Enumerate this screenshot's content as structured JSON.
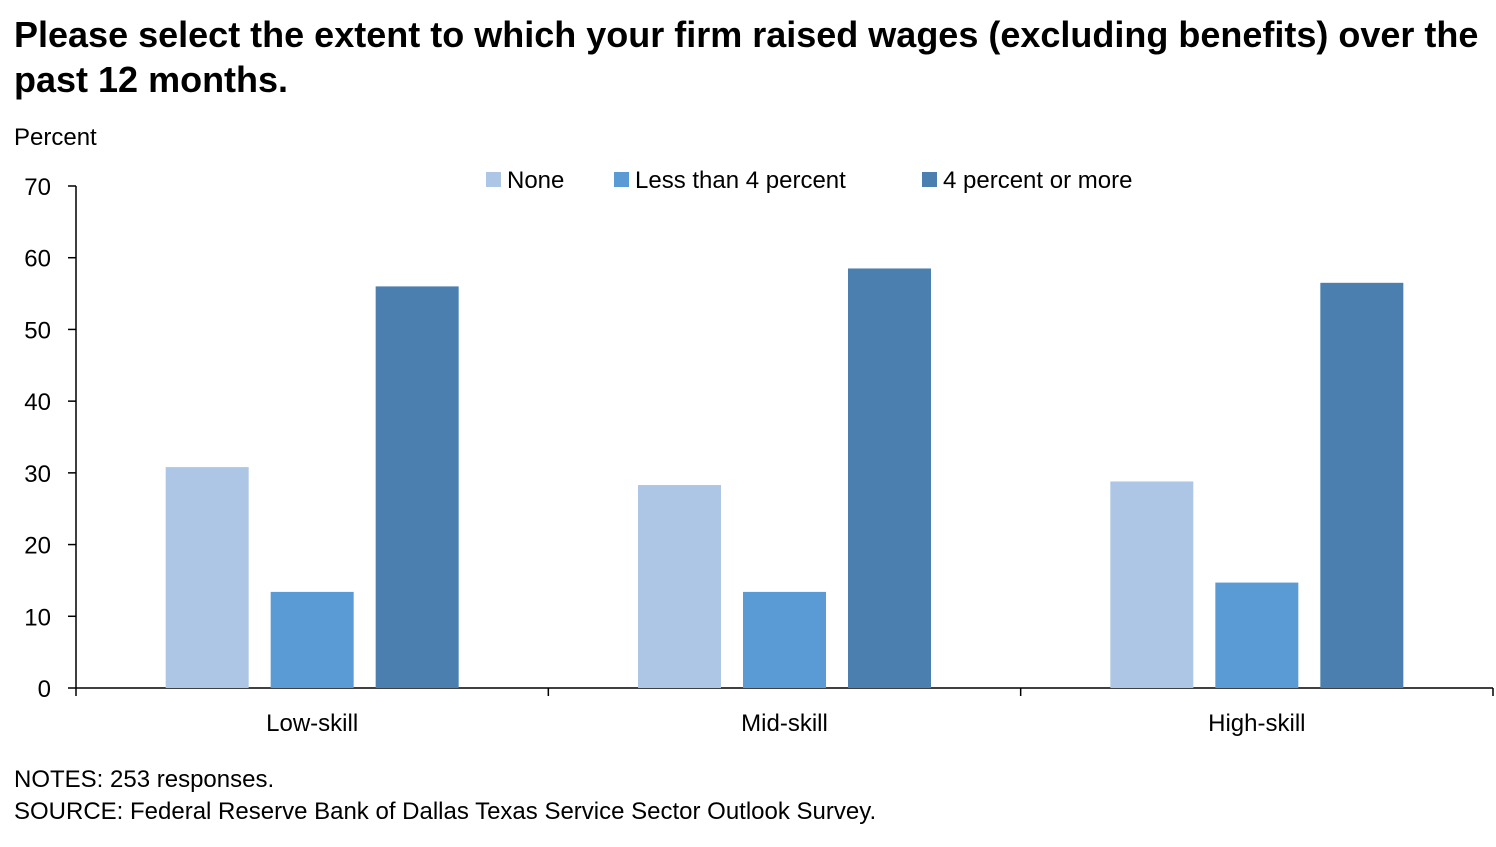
{
  "chart_data": {
    "type": "bar",
    "title": "Please select the extent to which your firm raised wages (excluding benefits) over the past 12 months.",
    "ylabel": "Percent",
    "ylim": [
      0,
      70
    ],
    "yticks": [
      0,
      10,
      20,
      30,
      40,
      50,
      60,
      70
    ],
    "categories": [
      "Low-skill",
      "Mid-skill",
      "High-skill"
    ],
    "series": [
      {
        "name": "None",
        "color": "#adc6e5",
        "values": [
          30.8,
          28.3,
          28.8
        ]
      },
      {
        "name": "Less than 4 percent",
        "color": "#5b9bd5",
        "values": [
          13.4,
          13.4,
          14.7
        ]
      },
      {
        "name": "4 percent or more",
        "color": "#4a7fb0",
        "values": [
          56.0,
          58.5,
          56.5
        ]
      }
    ],
    "legend_position": "top-center",
    "grid": false
  },
  "notes": {
    "line1": "NOTES: 253 responses.",
    "line2": "SOURCE: Federal Reserve Bank of Dallas Texas Service Sector Outlook Survey."
  }
}
